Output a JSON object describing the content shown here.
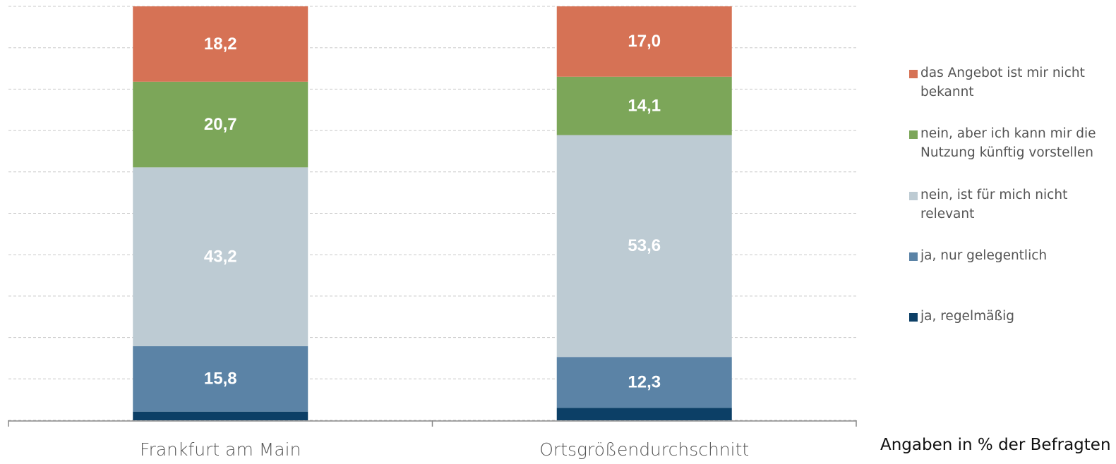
{
  "chart_data": {
    "type": "stacked-bar",
    "categories": [
      "Frankfurt am Main",
      "Ortsgrößendurchschnitt"
    ],
    "series": [
      {
        "name": "ja, regelmäßig",
        "color": "#0c3f66",
        "values": [
          2.1,
          3.0
        ],
        "value_labels": [
          null,
          null
        ]
      },
      {
        "name": "ja, nur gelegentlich",
        "color": "#5b83a6",
        "values": [
          15.8,
          12.3
        ],
        "value_labels": [
          "15,8",
          "12,3"
        ]
      },
      {
        "name": "nein, ist für mich nicht relevant",
        "color": "#bdcbd3",
        "values": [
          43.2,
          53.6
        ],
        "value_labels": [
          "43,2",
          "53,6"
        ]
      },
      {
        "name": "nein, aber ich kann mir die Nutzung künftig vorstellen",
        "color": "#7ca659",
        "values": [
          20.7,
          14.1
        ],
        "value_labels": [
          "20,7",
          "14,1"
        ]
      },
      {
        "name": "das Angebot ist mir nicht bekannt",
        "color": "#d67255",
        "values": [
          18.2,
          17.0
        ],
        "value_labels": [
          "18,2",
          "17,0"
        ]
      }
    ],
    "ylim": [
      0,
      100
    ],
    "yticks": [
      0,
      10,
      20,
      30,
      40,
      50,
      60,
      70,
      80,
      90,
      100
    ],
    "ytick_labels": false,
    "grid": true,
    "note": "Angaben in % der Befragten"
  }
}
